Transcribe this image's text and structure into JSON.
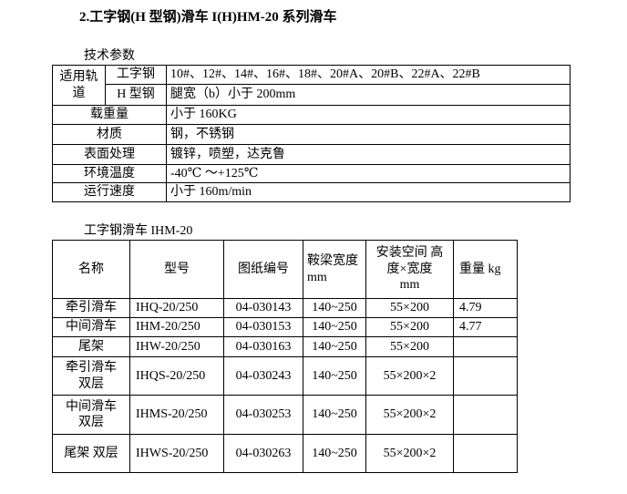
{
  "title": "2.工字钢(H 型钢)滑车 I(H)HM-20 系列滑车",
  "spec": {
    "caption": "技术参数",
    "track_label": "适用轨道",
    "rows": [
      {
        "label": "工字钢",
        "value": "10#、12#、14#、16#、18#、20#A、20#B、22#A、22#B"
      },
      {
        "label": "H 型钢",
        "value": "腿宽（b）小于 200mm"
      },
      {
        "label": "载重量",
        "value": "小于 160KG"
      },
      {
        "label": "材质",
        "value": "钢，不锈钢"
      },
      {
        "label": "表面处理",
        "value": "镀锌，喷塑，达克鲁"
      },
      {
        "label": "环境温度",
        "value": "-40℃ ～+125℃"
      },
      {
        "label": "运行速度",
        "value": "小于 160m/min"
      }
    ]
  },
  "products": {
    "caption": "工字钢滑车 IHM-20",
    "headers": [
      "名称",
      "型号",
      "图纸编号",
      "鞍梁宽度 mm",
      "安装空间 高度×宽度 mm",
      "重量 kg"
    ],
    "rows": [
      [
        "牵引滑车",
        "IHQ-20/250",
        "04-030143",
        "140~250",
        "55×200",
        "4.79"
      ],
      [
        "中间滑车",
        "IHM-20/250",
        "04-030153",
        "140~250",
        "55×200",
        "4.77"
      ],
      [
        "尾架",
        "IHW-20/250",
        "04-030163",
        "140~250",
        "55×200",
        ""
      ],
      [
        "牵引滑车 双层",
        "IHQS-20/250",
        "04-030243",
        "140~250",
        "55×200×2",
        ""
      ],
      [
        "中间滑车 双层",
        "IHMS-20/250",
        "04-030253",
        "140~250",
        "55×200×2",
        ""
      ],
      [
        "尾架 双层",
        "IHWS-20/250",
        "04-030263",
        "140~250",
        "55×200×2",
        ""
      ]
    ]
  }
}
